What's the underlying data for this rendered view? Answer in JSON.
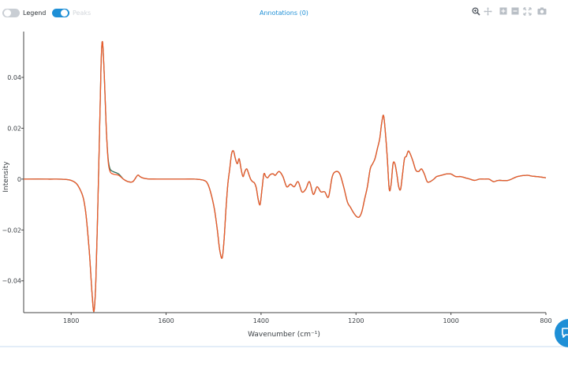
{
  "toolbar": {
    "legend_label": "Legend",
    "peaks_label": "Peaks",
    "annotations_label": "Annotations (0)",
    "tools": [
      "zoom-icon",
      "pan-icon",
      "zoom-in-icon",
      "zoom-out-icon",
      "autoscale-icon",
      "camera-icon"
    ]
  },
  "chart_data": {
    "type": "line",
    "xlabel": "Wavenumber (cm⁻¹)",
    "ylabel": "Intensity",
    "xlim": [
      1900,
      800
    ],
    "ylim": [
      -0.0525,
      0.058
    ],
    "xticks": [
      1800,
      1600,
      1400,
      1200,
      1000,
      800
    ],
    "yticks": [
      0.04,
      0.02,
      0,
      -0.02,
      -0.04
    ],
    "yticklabels": [
      "0.04",
      "0.02",
      "0",
      "−0.02",
      "−0.04"
    ],
    "grid": false,
    "colors": {
      "series_a": "#2f6f5a",
      "series_b": "#ee5a2a"
    },
    "series": [
      {
        "x": [
          1900,
          1850,
          1800,
          1780,
          1770,
          1762,
          1756,
          1752,
          1748,
          1744,
          1740,
          1737,
          1734,
          1730,
          1726,
          1722,
          1718,
          1712,
          1700,
          1690,
          1680,
          1670,
          1660,
          1655,
          1650,
          1640,
          1620,
          1600,
          1580,
          1560,
          1540,
          1520,
          1512,
          1505,
          1498,
          1492,
          1487,
          1482,
          1478,
          1474,
          1470,
          1466,
          1462,
          1458,
          1454,
          1450,
          1446,
          1442,
          1438,
          1434,
          1430,
          1426,
          1422,
          1418,
          1414,
          1410,
          1406,
          1402,
          1398,
          1394,
          1390,
          1386,
          1382,
          1378,
          1374,
          1370,
          1362,
          1354,
          1346,
          1338,
          1330,
          1322,
          1314,
          1306,
          1298,
          1290,
          1282,
          1274,
          1266,
          1258,
          1250,
          1242,
          1234,
          1226,
          1218,
          1212,
          1206,
          1200,
          1194,
          1188,
          1182,
          1176,
          1170,
          1165,
          1160,
          1155,
          1150,
          1146,
          1142,
          1138,
          1134,
          1130,
          1126,
          1122,
          1118,
          1114,
          1110,
          1106,
          1102,
          1098,
          1094,
          1090,
          1086,
          1080,
          1074,
          1068,
          1062,
          1056,
          1050,
          1044,
          1036,
          1030,
          1020,
          1010,
          1000,
          990,
          980,
          970,
          960,
          950,
          940,
          930,
          920,
          910,
          900,
          880,
          860,
          840,
          830,
          820,
          810,
          800
        ],
        "y": [
          0,
          0,
          -0.0005,
          -0.0045,
          -0.012,
          -0.028,
          -0.045,
          -0.052,
          -0.04,
          -0.012,
          0.02,
          0.045,
          0.054,
          0.04,
          0.02,
          0.008,
          0.004,
          0.003,
          0.002,
          0,
          -0.001,
          -0.001,
          0.0015,
          0.001,
          0.0005,
          0.0001,
          0,
          0,
          0,
          0,
          0,
          -0.0005,
          -0.002,
          -0.006,
          -0.012,
          -0.02,
          -0.028,
          -0.031,
          -0.024,
          -0.012,
          -0.002,
          0.004,
          0.01,
          0.011,
          0.008,
          0.006,
          0.008,
          0.004,
          0.001,
          0.003,
          0.004,
          0.002,
          0,
          -0.001,
          -0.0015,
          -0.0035,
          -0.008,
          -0.01,
          -0.004,
          0.002,
          0.001,
          0.0005,
          0.0015,
          0.002,
          0.002,
          0.0015,
          0.003,
          0.001,
          -0.003,
          -0.002,
          -0.003,
          -0.001,
          -0.005,
          -0.004,
          -0.001,
          -0.006,
          -0.003,
          -0.005,
          -0.005,
          -0.007,
          0.001,
          0.003,
          0.002,
          -0.003,
          -0.009,
          -0.011,
          -0.013,
          -0.0145,
          -0.015,
          -0.013,
          -0.008,
          -0.003,
          0.004,
          0.006,
          0.008,
          0.012,
          0.016,
          0.022,
          0.025,
          0.018,
          0.008,
          -0.004,
          -0.002,
          0.006,
          0.006,
          0.002,
          -0.003,
          -0.004,
          0.002,
          0.008,
          0.009,
          0.011,
          0.01,
          0.007,
          0.0035,
          0.003,
          0.004,
          0.002,
          -0.001,
          -0.001,
          0,
          0.001,
          0.0015,
          0.002,
          0.002,
          0.001,
          0.001,
          0.0005,
          0,
          -0.0005,
          0,
          0,
          0,
          -0.001,
          -0.0005,
          -0.0005,
          0.001,
          0.0015,
          0.0012,
          0.001,
          0.0008,
          0.0005
        ]
      },
      {
        "x": [
          1900,
          1850,
          1800,
          1780,
          1770,
          1762,
          1756,
          1752,
          1748,
          1744,
          1740,
          1737,
          1734,
          1730,
          1726,
          1722,
          1718,
          1712,
          1700,
          1690,
          1680,
          1670,
          1660,
          1655,
          1650,
          1640,
          1620,
          1600,
          1580,
          1560,
          1540,
          1520,
          1512,
          1505,
          1498,
          1492,
          1487,
          1482,
          1478,
          1474,
          1470,
          1466,
          1462,
          1458,
          1454,
          1450,
          1446,
          1442,
          1438,
          1434,
          1430,
          1426,
          1422,
          1418,
          1414,
          1410,
          1406,
          1402,
          1398,
          1394,
          1390,
          1386,
          1382,
          1378,
          1374,
          1370,
          1362,
          1354,
          1346,
          1338,
          1330,
          1322,
          1314,
          1306,
          1298,
          1290,
          1282,
          1274,
          1266,
          1258,
          1250,
          1242,
          1234,
          1226,
          1218,
          1212,
          1206,
          1200,
          1194,
          1188,
          1182,
          1176,
          1170,
          1165,
          1160,
          1155,
          1150,
          1146,
          1142,
          1138,
          1134,
          1130,
          1126,
          1122,
          1118,
          1114,
          1110,
          1106,
          1102,
          1098,
          1094,
          1090,
          1086,
          1080,
          1074,
          1068,
          1062,
          1056,
          1050,
          1044,
          1036,
          1030,
          1020,
          1010,
          1000,
          990,
          980,
          970,
          960,
          950,
          940,
          930,
          920,
          910,
          900,
          880,
          860,
          840,
          830,
          820,
          810,
          800
        ],
        "y": [
          0,
          0,
          -0.0005,
          -0.0045,
          -0.012,
          -0.028,
          -0.045,
          -0.052,
          -0.04,
          -0.012,
          0.02,
          0.045,
          0.054,
          0.04,
          0.02,
          0.007,
          0.003,
          0.002,
          0.0015,
          0,
          -0.001,
          -0.001,
          0.0015,
          0.001,
          0.0005,
          0.0001,
          0,
          0,
          0,
          0,
          0,
          -0.0005,
          -0.002,
          -0.006,
          -0.012,
          -0.02,
          -0.028,
          -0.031,
          -0.024,
          -0.012,
          -0.002,
          0.004,
          0.01,
          0.011,
          0.008,
          0.006,
          0.008,
          0.004,
          0.001,
          0.003,
          0.004,
          0.002,
          0,
          -0.001,
          -0.0015,
          -0.0035,
          -0.008,
          -0.01,
          -0.004,
          0.002,
          0.001,
          0.0005,
          0.0015,
          0.002,
          0.002,
          0.0015,
          0.003,
          0.001,
          -0.003,
          -0.002,
          -0.003,
          -0.001,
          -0.005,
          -0.004,
          -0.001,
          -0.006,
          -0.003,
          -0.005,
          -0.005,
          -0.007,
          0.001,
          0.003,
          0.002,
          -0.003,
          -0.009,
          -0.011,
          -0.013,
          -0.0145,
          -0.015,
          -0.013,
          -0.008,
          -0.003,
          0.004,
          0.006,
          0.008,
          0.012,
          0.016,
          0.022,
          0.025,
          0.018,
          0.008,
          -0.004,
          -0.002,
          0.006,
          0.006,
          0.002,
          -0.003,
          -0.004,
          0.002,
          0.008,
          0.009,
          0.011,
          0.01,
          0.007,
          0.0035,
          0.003,
          0.004,
          0.002,
          -0.001,
          -0.001,
          0,
          0.001,
          0.0015,
          0.002,
          0.002,
          0.001,
          0.001,
          0.0005,
          0,
          -0.0005,
          0,
          0,
          0,
          -0.001,
          -0.0005,
          -0.0005,
          0.001,
          0.0015,
          0.0012,
          0.001,
          0.0008,
          0.0005
        ]
      }
    ]
  }
}
